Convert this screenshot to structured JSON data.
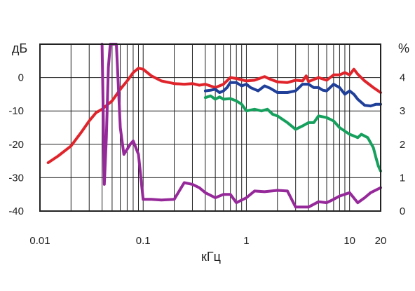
{
  "chart_data": {
    "type": "line",
    "title": "",
    "xlabel": "кГц",
    "ylabel_left": "дБ",
    "ylabel_right": "%",
    "x_scale": "log",
    "xlim": [
      0.01,
      20
    ],
    "ylim_left": [
      -40,
      10
    ],
    "ylim_right": [
      0,
      5
    ],
    "x_ticks": [
      {
        "value": 0.01,
        "label": "0.01"
      },
      {
        "value": 0.1,
        "label": "0.1"
      },
      {
        "value": 1,
        "label": "1"
      },
      {
        "value": 10,
        "label": "10"
      },
      {
        "value": 20,
        "label": "20"
      }
    ],
    "y_ticks_left": [
      {
        "value": 0,
        "label": "0"
      },
      {
        "value": -10,
        "label": "-10"
      },
      {
        "value": -20,
        "label": "-20"
      },
      {
        "value": -30,
        "label": "-30"
      },
      {
        "value": -40,
        "label": "-40"
      }
    ],
    "y_ticks_right": [
      {
        "value": 4,
        "label": "4"
      },
      {
        "value": 3,
        "label": "3"
      },
      {
        "value": 2,
        "label": "2"
      },
      {
        "value": 1,
        "label": "1"
      },
      {
        "value": 0,
        "label": "0"
      }
    ],
    "grid": true,
    "series": [
      {
        "color": "#e0242b",
        "axis": "left",
        "points": [
          [
            0.012,
            -25.5
          ],
          [
            0.015,
            -23.5
          ],
          [
            0.02,
            -20.5
          ],
          [
            0.025,
            -16.5
          ],
          [
            0.03,
            -13
          ],
          [
            0.035,
            -10.5
          ],
          [
            0.04,
            -9.5
          ],
          [
            0.05,
            -7
          ],
          [
            0.06,
            -3.5
          ],
          [
            0.07,
            -1
          ],
          [
            0.08,
            1.5
          ],
          [
            0.09,
            2.8
          ],
          [
            0.1,
            2.5
          ],
          [
            0.12,
            0.5
          ],
          [
            0.15,
            -1
          ],
          [
            0.2,
            -1.8
          ],
          [
            0.25,
            -2
          ],
          [
            0.3,
            -1.8
          ],
          [
            0.35,
            -2.3
          ],
          [
            0.4,
            -2
          ],
          [
            0.5,
            -3
          ],
          [
            0.6,
            -2
          ],
          [
            0.7,
            0
          ],
          [
            0.8,
            -0.3
          ],
          [
            1,
            -1
          ],
          [
            1.2,
            -0.8
          ],
          [
            1.5,
            0.3
          ],
          [
            1.7,
            -0.5
          ],
          [
            2,
            -1.3
          ],
          [
            2.5,
            -1.5
          ],
          [
            3,
            -0.8
          ],
          [
            3.5,
            -1
          ],
          [
            3.8,
            0.5
          ],
          [
            4,
            -1.2
          ],
          [
            5,
            0
          ],
          [
            6,
            -0.8
          ],
          [
            7,
            0.8
          ],
          [
            8,
            0.8
          ],
          [
            9,
            1.5
          ],
          [
            10,
            0.8
          ],
          [
            11,
            2.5
          ],
          [
            12,
            1
          ],
          [
            14,
            -1
          ],
          [
            17,
            -3
          ],
          [
            20,
            -4.5
          ]
        ]
      },
      {
        "color": "#1f3f99",
        "axis": "left",
        "points": [
          [
            0.4,
            -4
          ],
          [
            0.45,
            -3.8
          ],
          [
            0.5,
            -3.5
          ],
          [
            0.55,
            -4.5
          ],
          [
            0.6,
            -4
          ],
          [
            0.65,
            -3
          ],
          [
            0.7,
            -1.5
          ],
          [
            0.8,
            -1.5
          ],
          [
            0.9,
            -2.5
          ],
          [
            1,
            -2
          ],
          [
            1.1,
            -3
          ],
          [
            1.3,
            -4
          ],
          [
            1.5,
            -2.5
          ],
          [
            1.7,
            -3.2
          ],
          [
            2,
            -4.5
          ],
          [
            2.5,
            -4.5
          ],
          [
            3,
            -4
          ],
          [
            3.5,
            -2
          ],
          [
            4,
            -2
          ],
          [
            4.5,
            -3
          ],
          [
            5,
            -3
          ],
          [
            5.5,
            -3.8
          ],
          [
            6,
            -4
          ],
          [
            7,
            -2
          ],
          [
            8,
            -3
          ],
          [
            9,
            -5
          ],
          [
            10,
            -4
          ],
          [
            11,
            -5
          ],
          [
            12,
            -6.5
          ],
          [
            14,
            -8.3
          ],
          [
            16,
            -8.5
          ],
          [
            18,
            -8
          ],
          [
            20,
            -8
          ]
        ]
      },
      {
        "color": "#16a05d",
        "axis": "left",
        "points": [
          [
            0.4,
            -6
          ],
          [
            0.45,
            -5.5
          ],
          [
            0.5,
            -6.5
          ],
          [
            0.55,
            -5.8
          ],
          [
            0.6,
            -6.5
          ],
          [
            0.7,
            -6.3
          ],
          [
            0.8,
            -7
          ],
          [
            0.9,
            -8
          ],
          [
            1,
            -10
          ],
          [
            1.2,
            -9.5
          ],
          [
            1.4,
            -10
          ],
          [
            1.6,
            -9.5
          ],
          [
            1.8,
            -11
          ],
          [
            2,
            -11.5
          ],
          [
            2.5,
            -13.5
          ],
          [
            3,
            -15.5
          ],
          [
            3.5,
            -14.5
          ],
          [
            4,
            -13.5
          ],
          [
            4.5,
            -13.5
          ],
          [
            5,
            -11.5
          ],
          [
            6,
            -12
          ],
          [
            7,
            -13
          ],
          [
            8,
            -15
          ],
          [
            10,
            -17
          ],
          [
            11,
            -17.5
          ],
          [
            12,
            -18
          ],
          [
            13,
            -17
          ],
          [
            15,
            -18
          ],
          [
            17,
            -21
          ],
          [
            18,
            -24
          ],
          [
            19,
            -26.5
          ],
          [
            20,
            -28
          ]
        ]
      },
      {
        "color": "#96299a",
        "axis": "right",
        "points": [
          [
            0.04,
            5
          ],
          [
            0.041,
            3
          ],
          [
            0.042,
            0.8
          ],
          [
            0.044,
            2.2
          ],
          [
            0.046,
            4.3
          ],
          [
            0.048,
            5
          ],
          [
            0.055,
            5
          ],
          [
            0.058,
            3.5
          ],
          [
            0.06,
            2.5
          ],
          [
            0.065,
            1.7
          ],
          [
            0.07,
            1.85
          ],
          [
            0.075,
            2
          ],
          [
            0.08,
            2.1
          ],
          [
            0.09,
            1.7
          ],
          [
            0.1,
            0.35
          ],
          [
            0.12,
            0.35
          ],
          [
            0.15,
            0.33
          ],
          [
            0.2,
            0.35
          ],
          [
            0.25,
            0.85
          ],
          [
            0.3,
            0.8
          ],
          [
            0.35,
            0.7
          ],
          [
            0.4,
            0.55
          ],
          [
            0.5,
            0.4
          ],
          [
            0.6,
            0.5
          ],
          [
            0.7,
            0.5
          ],
          [
            0.8,
            0.25
          ],
          [
            1,
            0.4
          ],
          [
            1.2,
            0.6
          ],
          [
            1.5,
            0.58
          ],
          [
            2,
            0.62
          ],
          [
            2.5,
            0.6
          ],
          [
            3,
            0.12
          ],
          [
            3.5,
            0.12
          ],
          [
            4,
            0.12
          ],
          [
            5,
            0.28
          ],
          [
            6,
            0.25
          ],
          [
            7,
            0.35
          ],
          [
            8,
            0.45
          ],
          [
            10,
            0.55
          ],
          [
            12,
            0.25
          ],
          [
            14,
            0.4
          ],
          [
            16,
            0.55
          ],
          [
            20,
            0.7
          ]
        ]
      }
    ]
  }
}
